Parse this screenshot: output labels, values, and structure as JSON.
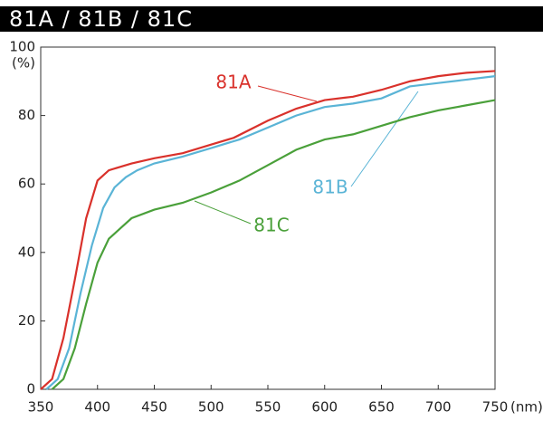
{
  "chart_data": {
    "type": "line",
    "title": "81A / 81B / 81C",
    "x_label": "(nm)",
    "y_label": "(%)",
    "xlim": [
      350,
      750
    ],
    "xticks": [
      350,
      400,
      450,
      500,
      550,
      600,
      650,
      700,
      750
    ],
    "ylim": [
      0,
      100
    ],
    "yticks": [
      0,
      20,
      40,
      60,
      80,
      100
    ],
    "grid": false,
    "series": [
      {
        "name": "81A",
        "color": "#d9312b",
        "x": [
          350,
          360,
          370,
          380,
          390,
          400,
          410,
          420,
          430,
          450,
          475,
          500,
          520,
          550,
          575,
          600,
          625,
          650,
          675,
          700,
          725,
          750
        ],
        "values": [
          0,
          3,
          15,
          32,
          50,
          61,
          64,
          65,
          66,
          67.5,
          69,
          71.5,
          73.5,
          78.5,
          82,
          84.5,
          85.5,
          87.5,
          90,
          91.5,
          92.5,
          93
        ]
      },
      {
        "name": "81B",
        "color": "#5ab4d6",
        "x": [
          355,
          365,
          375,
          385,
          395,
          405,
          415,
          425,
          435,
          450,
          475,
          500,
          525,
          550,
          575,
          600,
          625,
          650,
          675,
          700,
          725,
          750
        ],
        "values": [
          0,
          3,
          12,
          28,
          42,
          53,
          59,
          62,
          64,
          66,
          68,
          70.5,
          73,
          76.5,
          80,
          82.5,
          83.5,
          85,
          88.5,
          89.5,
          90.5,
          91.5
        ]
      },
      {
        "name": "81C",
        "color": "#4aa03a",
        "x": [
          360,
          370,
          380,
          390,
          400,
          410,
          420,
          430,
          450,
          475,
          500,
          525,
          550,
          575,
          600,
          625,
          650,
          675,
          700,
          725,
          750
        ],
        "values": [
          0,
          3,
          12,
          25,
          37,
          44,
          47,
          50,
          52.5,
          54.5,
          57.5,
          61,
          65.5,
          70,
          73,
          74.5,
          77,
          79.5,
          81.5,
          83,
          84.5
        ]
      }
    ]
  }
}
